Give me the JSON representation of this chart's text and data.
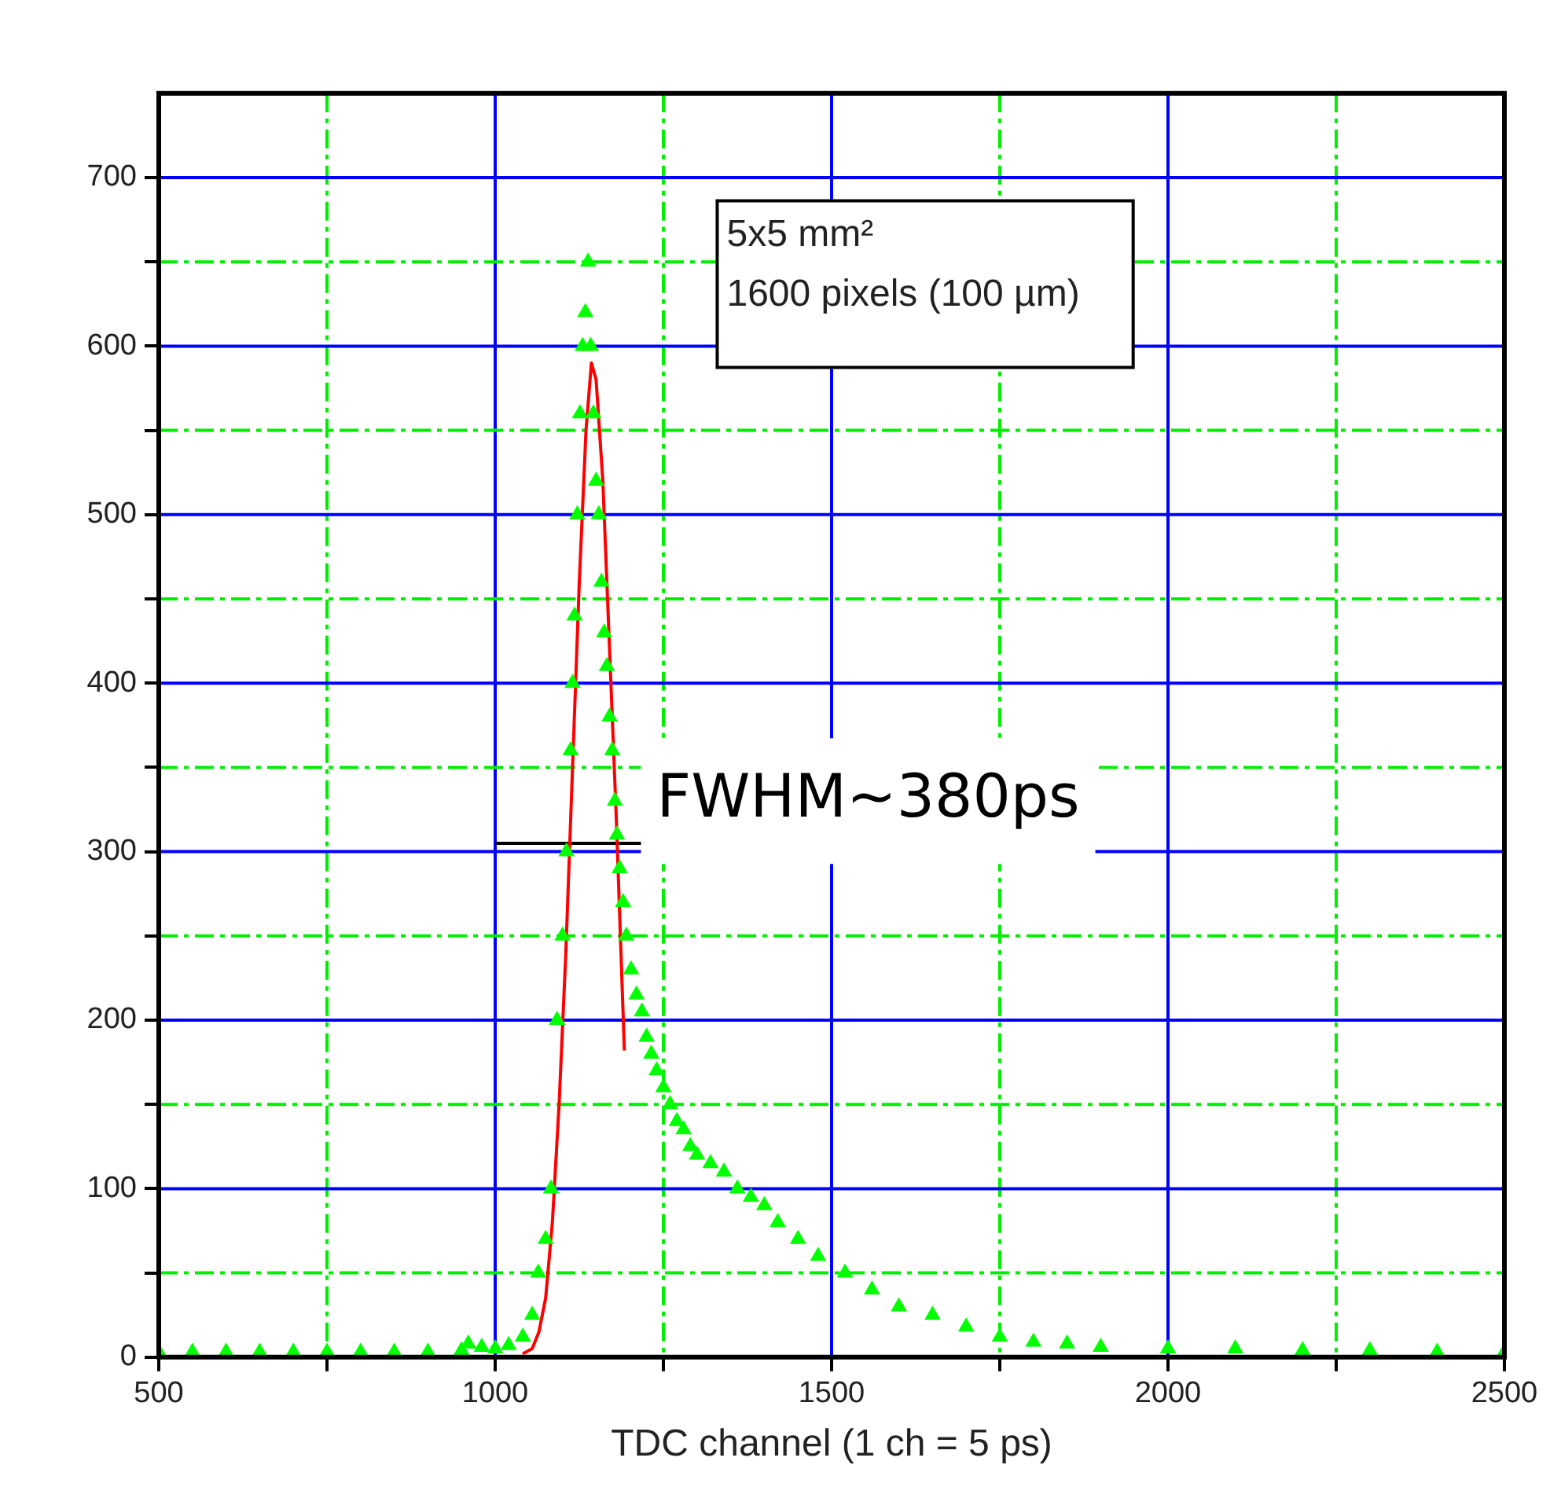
{
  "chart_data": {
    "type": "scatter",
    "xlabel": "TDC channel (1 ch = 5 ps)",
    "x": [
      500,
      550,
      600,
      650,
      700,
      750,
      800,
      850,
      900,
      950,
      960,
      980,
      1000,
      1020,
      1041,
      1055,
      1064,
      1075,
      1083,
      1092,
      1100,
      1106,
      1112,
      1115,
      1118,
      1122,
      1126,
      1130,
      1134,
      1138,
      1142,
      1146,
      1150,
      1154,
      1158,
      1162,
      1166,
      1170,
      1174,
      1178,
      1181,
      1185,
      1190,
      1195,
      1202,
      1210,
      1218,
      1225,
      1232,
      1240,
      1250,
      1260,
      1270,
      1280,
      1290,
      1300,
      1320,
      1340,
      1360,
      1380,
      1400,
      1420,
      1450,
      1480,
      1520,
      1560,
      1600,
      1650,
      1700,
      1750,
      1800,
      1850,
      1900,
      2000,
      2100,
      2200,
      2300,
      2400,
      2500
    ],
    "series": [
      {
        "color": "#00ff00",
        "marker": "triangle",
        "values": [
          3,
          3,
          3,
          3,
          3,
          3,
          3,
          3,
          3,
          4,
          8,
          6,
          5,
          7,
          12,
          25,
          50,
          70,
          100,
          200,
          250,
          300,
          360,
          400,
          440,
          500,
          560,
          600,
          620,
          650,
          600,
          560,
          520,
          500,
          460,
          430,
          410,
          380,
          360,
          330,
          310,
          290,
          270,
          250,
          230,
          215,
          205,
          190,
          180,
          170,
          160,
          150,
          140,
          135,
          125,
          120,
          115,
          110,
          100,
          95,
          90,
          80,
          70,
          60,
          50,
          40,
          30,
          25,
          18,
          12,
          9,
          8,
          6,
          5,
          5,
          4,
          4,
          3,
          3
        ]
      },
      {
        "type": "line",
        "color": "#ff0000",
        "marker": "none",
        "x": [
          1041,
          1055,
          1065,
          1075,
          1085,
          1095,
          1105,
          1115,
          1125,
          1135,
          1143,
          1150,
          1160,
          1170,
          1180,
          1192
        ],
        "values": [
          2,
          5,
          15,
          35,
          80,
          150,
          240,
          350,
          460,
          550,
          590,
          580,
          520,
          420,
          320,
          182
        ]
      },
      {
        "type": "line",
        "color": "#000000",
        "marker": "none",
        "x": [
          1000,
          1220
        ],
        "values": [
          305,
          305
        ]
      }
    ],
    "xlim": [
      500,
      2500
    ],
    "xticks": [
      500,
      {
        "value": 750,
        "label": null
      },
      1000,
      {
        "value": 1250,
        "label": null
      },
      1500,
      {
        "value": 1750,
        "label": null
      },
      2000,
      {
        "value": 2250,
        "label": null
      },
      2500
    ],
    "ylim": [
      0,
      750
    ],
    "yticks": [
      0,
      {
        "value": 50,
        "label": null
      },
      100,
      {
        "value": 150,
        "label": null
      },
      200,
      {
        "value": 250,
        "label": null
      },
      300,
      {
        "value": 350,
        "label": null
      },
      400,
      {
        "value": 450,
        "label": null
      },
      500,
      {
        "value": 550,
        "label": null
      },
      600,
      {
        "value": 650,
        "label": null
      },
      700
    ],
    "grid": true,
    "legend": false,
    "annotations": [
      "5x5 mm²",
      "1600 pixels (100 µm)",
      "FWHM~380ps"
    ]
  }
}
